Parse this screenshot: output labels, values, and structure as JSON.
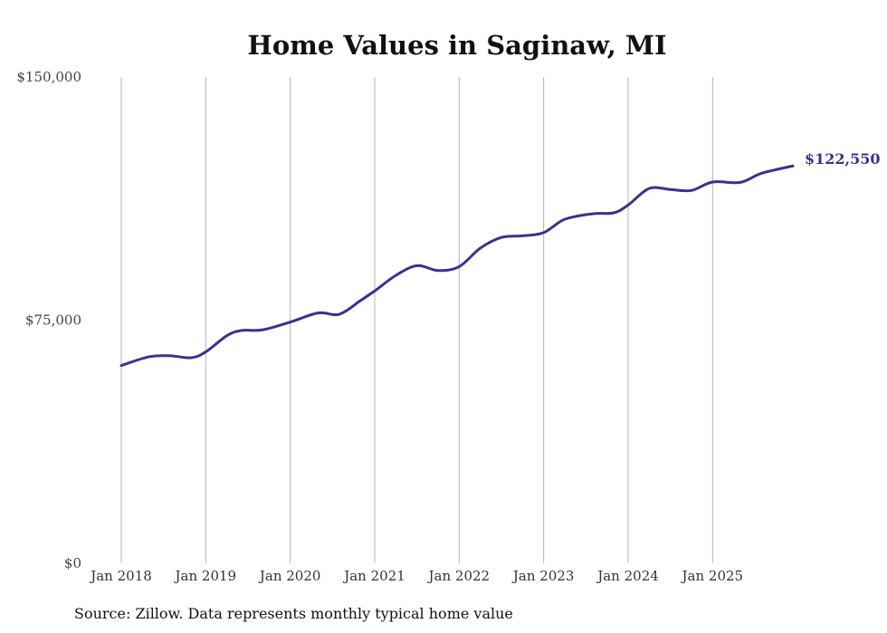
{
  "chart_data": {
    "type": "line",
    "title": "Home Values in Saginaw, MI",
    "xlabel": "",
    "ylabel": "",
    "ylim": [
      0,
      150000
    ],
    "y_ticks": [
      {
        "value": 0,
        "label": "$0"
      },
      {
        "value": 75000,
        "label": "$75,000"
      },
      {
        "value": 150000,
        "label": "$150,000"
      }
    ],
    "x_ticks": [
      {
        "value": 2018,
        "label": "Jan 2018"
      },
      {
        "value": 2019,
        "label": "Jan 2019"
      },
      {
        "value": 2020,
        "label": "Jan 2020"
      },
      {
        "value": 2021,
        "label": "Jan 2021"
      },
      {
        "value": 2022,
        "label": "Jan 2022"
      },
      {
        "value": 2023,
        "label": "Jan 2023"
      },
      {
        "value": 2024,
        "label": "Jan 2024"
      },
      {
        "value": 2025,
        "label": "Jan 2025"
      }
    ],
    "xlim": [
      2018,
      2025.95
    ],
    "vertical_grid": true,
    "series": [
      {
        "name": "Typical home value",
        "color": "#3b3190",
        "x": [
          2018.0,
          2018.33,
          2018.58,
          2018.83,
          2019.0,
          2019.25,
          2019.42,
          2019.67,
          2020.0,
          2020.33,
          2020.58,
          2020.83,
          2021.0,
          2021.25,
          2021.5,
          2021.75,
          2022.0,
          2022.25,
          2022.5,
          2022.75,
          2023.0,
          2023.25,
          2023.58,
          2023.83,
          2024.0,
          2024.25,
          2024.5,
          2024.75,
          2025.0,
          2025.33,
          2025.58,
          2025.95
        ],
        "values": [
          61000,
          63700,
          64000,
          63400,
          65200,
          70200,
          71800,
          72000,
          74400,
          77200,
          76800,
          81000,
          84000,
          88800,
          91800,
          90300,
          91500,
          97200,
          100500,
          101000,
          102000,
          106100,
          107800,
          108100,
          110500,
          115600,
          115300,
          115000,
          117600,
          117500,
          120300,
          122550
        ]
      }
    ],
    "end_label": "$122,550"
  },
  "footer": {
    "source": "Source: Zillow. Data represents monthly typical home value"
  }
}
